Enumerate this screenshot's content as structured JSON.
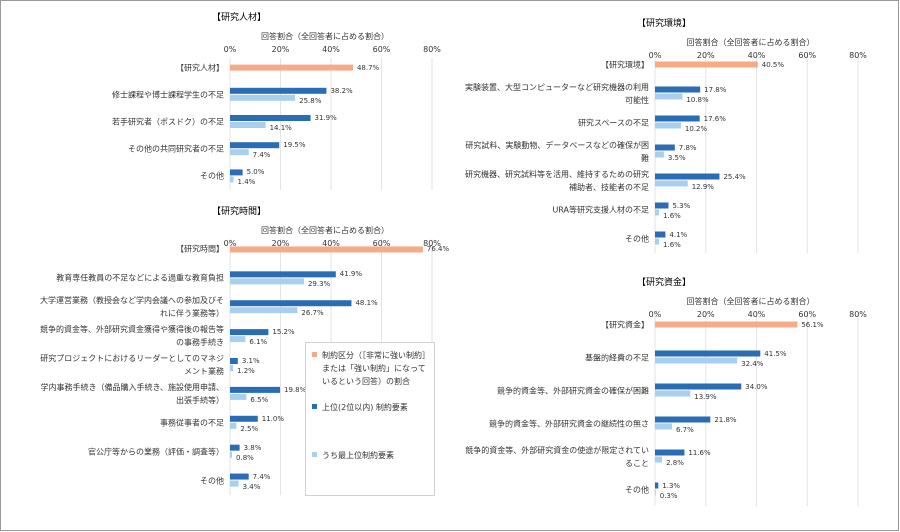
{
  "chart_data": [
    {
      "type": "bar",
      "orientation": "horizontal",
      "title": "【研究人材】",
      "xlabel": "回答割合（全回答者に占める割合）",
      "xlim": [
        0,
        80
      ],
      "xticks": [
        {
          "value": 0,
          "label": "0%"
        },
        {
          "value": 20,
          "label": "20%"
        },
        {
          "value": 40,
          "label": "40%"
        },
        {
          "value": 60,
          "label": "60%"
        },
        {
          "value": 80,
          "label": "80%"
        }
      ],
      "grid": true,
      "categories": [
        "【研究人材】",
        "修士課程や博士課程学生の不足",
        "若手研究者（ポスドク）の不足",
        "その他の共同研究者の不足",
        "その他"
      ],
      "series": [
        {
          "color": "#f4ab87",
          "values": [
            48.7,
            null,
            null,
            null,
            null
          ],
          "value_labels": [
            "48.7%",
            null,
            null,
            null,
            null
          ]
        },
        {
          "color": "#2a6db5",
          "values": [
            null,
            38.2,
            31.9,
            19.5,
            5.0
          ],
          "value_labels": [
            null,
            "38.2%",
            "31.9%",
            "19.5%",
            "5.0%"
          ]
        },
        {
          "color": "#a8cff0",
          "values": [
            null,
            25.8,
            14.1,
            7.4,
            1.4
          ],
          "value_labels": [
            null,
            "25.8%",
            "14.1%",
            "7.4%",
            "1.4%"
          ]
        }
      ]
    },
    {
      "type": "bar",
      "orientation": "horizontal",
      "title": "【研究時間】",
      "xlabel": "回答割合（全回答者に占める割合）",
      "xlim": [
        0,
        80
      ],
      "xticks": [
        {
          "value": 0,
          "label": "0%"
        },
        {
          "value": 20,
          "label": "20%"
        },
        {
          "value": 40,
          "label": "40%"
        },
        {
          "value": 60,
          "label": "60%"
        },
        {
          "value": 80,
          "label": "80%"
        }
      ],
      "grid": true,
      "categories": [
        "【研究時間】",
        "教育専任教員の不足などによる過重な教育負担",
        "大学運営業務（教授会など学内会議への参加及びそれに伴う業務等）",
        "競争的資金等、外部研究資金獲得や獲得後の報告等の事務手続き",
        "研究プロジェクトにおけるリーダーとしてのマネジメント業務",
        "学内事務手続き（備品購入手続き、施設使用申請、出張手続等）",
        "事務従事者の不足",
        "官公庁等からの業務（評価・調査等）",
        "その他"
      ],
      "series": [
        {
          "name": "制約区分（［非常に強い制約］または「強い制約」になっているという回答）の割合",
          "color": "#f4ab87",
          "values": [
            76.4,
            null,
            null,
            null,
            null,
            null,
            null,
            null,
            null
          ],
          "value_labels": [
            "76.4%",
            null,
            null,
            null,
            null,
            null,
            null,
            null,
            null
          ]
        },
        {
          "name": "上位(2位以内) 制約要素",
          "color": "#2a6db5",
          "values": [
            null,
            41.9,
            48.1,
            15.2,
            3.1,
            19.8,
            11.0,
            3.8,
            7.4
          ],
          "value_labels": [
            null,
            "41.9%",
            "48.1%",
            "15.2%",
            "3.1%",
            "19.8%",
            "11.0%",
            "3.8%",
            "7.4%"
          ]
        },
        {
          "name": "うち最上位制約要素",
          "color": "#a8cff0",
          "values": [
            null,
            29.3,
            26.7,
            6.1,
            1.2,
            6.5,
            2.5,
            0.8,
            3.4
          ],
          "value_labels": [
            null,
            "29.3%",
            "26.7%",
            "6.1%",
            "1.2%",
            "6.5%",
            "2.5%",
            "0.8%",
            "3.4%"
          ]
        }
      ]
    },
    {
      "type": "bar",
      "orientation": "horizontal",
      "title": "【研究環境】",
      "xlabel": "回答割合（全回答者に占める割合）",
      "xlim": [
        0,
        80
      ],
      "xticks": [
        {
          "value": 0,
          "label": "0%"
        },
        {
          "value": 20,
          "label": "20%"
        },
        {
          "value": 40,
          "label": "40%"
        },
        {
          "value": 60,
          "label": "60%"
        },
        {
          "value": 80,
          "label": "80%"
        }
      ],
      "grid": true,
      "categories": [
        "【研究環境】",
        "実験装置、大型コンピューターなど研究機器の利用可能性",
        "研究スペースの不足",
        "研究試料、実験動物、データベースなどの確保が困難",
        "研究機器、研究試料等を活用、維持するための研究補助者、技能者の不足",
        "URA等研究支援人材の不足",
        "その他"
      ],
      "series": [
        {
          "color": "#f4ab87",
          "values": [
            40.5,
            null,
            null,
            null,
            null,
            null,
            null
          ],
          "value_labels": [
            "40.5%",
            null,
            null,
            null,
            null,
            null,
            null
          ]
        },
        {
          "color": "#2a6db5",
          "values": [
            null,
            17.8,
            17.6,
            7.8,
            25.4,
            5.3,
            4.1
          ],
          "value_labels": [
            null,
            "17.8%",
            "17.6%",
            "7.8%",
            "25.4%",
            "5.3%",
            "4.1%"
          ]
        },
        {
          "color": "#a8cff0",
          "values": [
            null,
            10.8,
            10.2,
            3.5,
            12.9,
            1.6,
            1.6
          ],
          "value_labels": [
            null,
            "10.8%",
            "10.2%",
            "3.5%",
            "12.9%",
            "1.6%",
            "1.6%"
          ]
        }
      ]
    },
    {
      "type": "bar",
      "orientation": "horizontal",
      "title": "【研究資金】",
      "xlabel": "回答割合（全回答者に占める割合）",
      "xlim": [
        0,
        80
      ],
      "xticks": [
        {
          "value": 0,
          "label": "0%"
        },
        {
          "value": 20,
          "label": "20%"
        },
        {
          "value": 40,
          "label": "40%"
        },
        {
          "value": 60,
          "label": "60%"
        },
        {
          "value": 80,
          "label": "80%"
        }
      ],
      "grid": true,
      "categories": [
        "【研究資金】",
        "基盤的経費の不足",
        "競争的資金等、外部研究資金の確保が困難",
        "競争的資金等、外部研究資金の継続性の無さ",
        "競争的資金等、外部研究資金の使途が限定されていること",
        "その他"
      ],
      "series": [
        {
          "color": "#f4ab87",
          "values": [
            56.1,
            null,
            null,
            null,
            null,
            null
          ],
          "value_labels": [
            "56.1%",
            null,
            null,
            null,
            null,
            null
          ]
        },
        {
          "color": "#2a6db5",
          "values": [
            null,
            41.5,
            34.0,
            21.8,
            11.6,
            1.3
          ],
          "value_labels": [
            null,
            "41.5%",
            "34.0%",
            "21.8%",
            "11.6%",
            "1.3%"
          ]
        },
        {
          "color": "#a8cff0",
          "values": [
            null,
            32.4,
            13.9,
            6.7,
            2.8,
            0.3
          ],
          "value_labels": [
            null,
            "32.4%",
            "13.9%",
            "6.7%",
            "2.8%",
            "0.3%"
          ]
        }
      ]
    }
  ]
}
